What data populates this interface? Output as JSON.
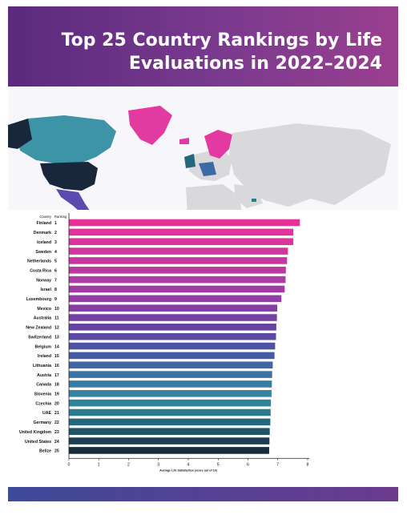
{
  "title": "Top 25 Country Rankings by Life Evaluations in 2022–2024",
  "colors": {
    "header_start": "#5a2a7e",
    "header_end": "#9a3f8f",
    "map_land": "#d9d9db",
    "map_high": "#e23aa0",
    "map_mid": "#3c94a6",
    "map_low": "#18283a",
    "map_oceania": "#5a4cae"
  },
  "chart_data": {
    "type": "bar",
    "orientation": "horizontal",
    "column_headers": [
      "Country",
      "Ranking"
    ],
    "categories": [
      "Finland",
      "Denmark",
      "Iceland",
      "Sweden",
      "Netherlands",
      "Costa Rica",
      "Norway",
      "Israel",
      "Luxembourg",
      "Mexico",
      "Australia",
      "New Zealand",
      "Switzerland",
      "Belgium",
      "Ireland",
      "Lithuania",
      "Austria",
      "Canada",
      "Slovenia",
      "Czechia",
      "UAE",
      "Germany",
      "United Kingdom",
      "United States",
      "Belize"
    ],
    "rankings": [
      "1",
      "2",
      "3",
      "4",
      "5",
      "6",
      "7",
      "8",
      "9",
      "10",
      "11",
      "12",
      "13",
      "14",
      "15",
      "16",
      "17",
      "18",
      "19",
      "20",
      "21",
      "22",
      "23",
      "24",
      "25"
    ],
    "values": [
      7.74,
      7.52,
      7.52,
      7.34,
      7.31,
      7.27,
      7.26,
      7.23,
      7.12,
      6.98,
      6.97,
      6.95,
      6.94,
      6.91,
      6.89,
      6.83,
      6.81,
      6.8,
      6.79,
      6.77,
      6.76,
      6.75,
      6.73,
      6.72,
      6.71
    ],
    "bar_colors": [
      "#e8309a",
      "#e2329c",
      "#da349d",
      "#d1369e",
      "#c6389f",
      "#bb3aa0",
      "#ae3ca1",
      "#a13da2",
      "#933ea2",
      "#853fa2",
      "#7640a2",
      "#6844a2",
      "#5a4aa2",
      "#4e52a2",
      "#455ca3",
      "#3f67a4",
      "#3a72a4",
      "#377ca3",
      "#3585a1",
      "#31839c",
      "#2b7a8e",
      "#26687a",
      "#1f5465",
      "#1a3f50",
      "#162e3c"
    ],
    "x_ticks": [
      "0",
      "1",
      "2",
      "3",
      "4",
      "5",
      "6",
      "7",
      "8"
    ],
    "xlim": [
      0,
      8
    ],
    "xlabel": "Average Life Satisfaction (score out of 10)",
    "grid": false,
    "legend": "none"
  }
}
